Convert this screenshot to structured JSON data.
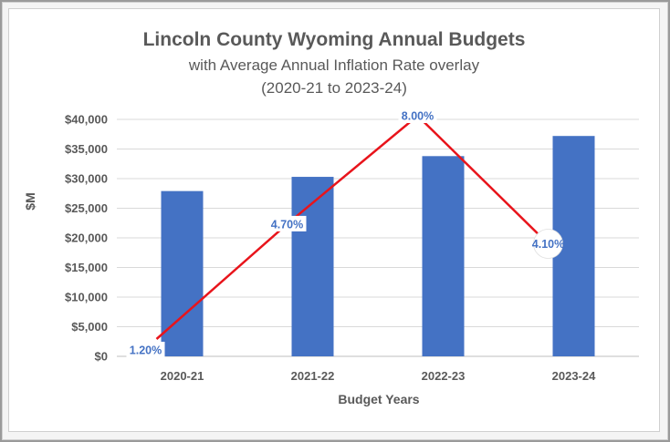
{
  "chart_data": {
    "type": "bar",
    "title": "Lincoln County Wyoming Annual Budgets",
    "subtitle_line1": "with Average Annual Inflation Rate overlay",
    "subtitle_line2": "(2020-21 to 2023-24)",
    "xlabel": "Budget Years",
    "ylabel": "$M",
    "categories": [
      "2020-21",
      "2021-22",
      "2022-23",
      "2023-24"
    ],
    "y_ticks": [
      "$0",
      "$5,000",
      "$10,000",
      "$15,000",
      "$20,000",
      "$25,000",
      "$30,000",
      "$35,000",
      "$40,000"
    ],
    "ylim": [
      0,
      40000
    ],
    "grid": true,
    "series": [
      {
        "values": [
          27900,
          30300,
          33800,
          37200
        ],
        "type": "bar",
        "color": "#4472c4"
      },
      {
        "values": [
          1.2,
          4.7,
          8.0,
          4.1
        ],
        "type": "line",
        "color": "#e8141b",
        "labels": [
          "1.20%",
          "4.70%",
          "8.00%",
          "4.10%"
        ]
      }
    ],
    "inflation_axis_range": [
      1.2,
      8.0
    ]
  }
}
